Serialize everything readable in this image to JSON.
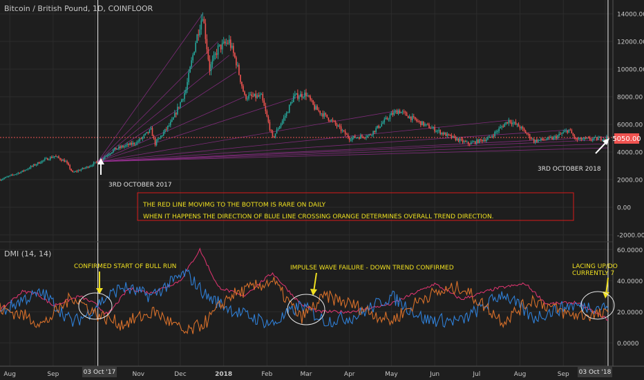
{
  "header": {
    "title": "Bitcoin / British Pound, 1D, COINFLOOR"
  },
  "indicator": {
    "title": "DMI (14, 14)"
  },
  "price_badge": {
    "value": "5050.00",
    "color": "#ef5350"
  },
  "time_badges": {
    "left": "03 Oct '17",
    "right": "03 Oct '18"
  },
  "annotations": {
    "left_date": "3RD OCTOBER 2017",
    "right_date": "3RD OCTOBER 2018",
    "box_line1": "THE RED LINE MOVIMG TO THE BOTTOM IS RARE ON DAILY",
    "box_line2": "WHEN IT HAPPENS THE DIRECTION OF BLUE LINE CROSSING ORANGE DETERMINES OVERALL TREND DIRECTION.",
    "bull": "CONFIRMED START OF BULL RUN",
    "impulse": "IMPULSE WAVE FAILURE - DOWN TREND CONFIRMED",
    "lacing1": "LACING UP/DO",
    "lacing2": "CURRENTLY 7"
  },
  "colors": {
    "background": "#1e1e1e",
    "grid": "#2c2c2c",
    "up": "#26a69a",
    "down": "#ef5350",
    "di_plus": "#2f7fd6",
    "di_minus": "#d8702a",
    "adx": "#d6336c",
    "fan": "#a0309a",
    "annotation_text": "#f0e020",
    "box_border": "#d81b1b"
  },
  "chart_data": [
    {
      "type": "candlestick",
      "title": "Bitcoin / British Pound, 1D, COINFLOOR",
      "ylim": [
        -2500,
        15000
      ],
      "yticks": [
        -2000,
        0,
        2000,
        4000,
        6000,
        8000,
        10000,
        12000,
        14000
      ],
      "ytick_labels": [
        "-2000.00",
        "0.00",
        "2000.00",
        "4000.00",
        "6000.00",
        "8000.00",
        "10000.00",
        "12000.00",
        "14000.00"
      ],
      "xtick_labels": [
        "Aug",
        "Sep",
        "Oct",
        "Nov",
        "Dec",
        "2018",
        "Feb",
        "Mar",
        "Apr",
        "May",
        "Jun",
        "Jul",
        "Aug",
        "Sep",
        "Oct"
      ],
      "close_path": [
        [
          "2017-07-25",
          2000
        ],
        [
          "2017-08-10",
          2600
        ],
        [
          "2017-08-25",
          3400
        ],
        [
          "2017-09-02",
          3700
        ],
        [
          "2017-09-10",
          3300
        ],
        [
          "2017-09-15",
          2500
        ],
        [
          "2017-09-25",
          2900
        ],
        [
          "2017-10-03",
          3300
        ],
        [
          "2017-10-15",
          4200
        ],
        [
          "2017-10-31",
          4700
        ],
        [
          "2017-11-10",
          5600
        ],
        [
          "2017-11-13",
          4600
        ],
        [
          "2017-11-25",
          6200
        ],
        [
          "2017-12-05",
          8500
        ],
        [
          "2017-12-12",
          12000
        ],
        [
          "2017-12-17",
          14000
        ],
        [
          "2017-12-22",
          10000
        ],
        [
          "2017-12-28",
          11500
        ],
        [
          "2018-01-05",
          12000
        ],
        [
          "2018-01-10",
          10500
        ],
        [
          "2018-01-16",
          8000
        ],
        [
          "2018-01-28",
          8000
        ],
        [
          "2018-02-05",
          5000
        ],
        [
          "2018-02-15",
          6800
        ],
        [
          "2018-02-20",
          8000
        ],
        [
          "2018-03-01",
          8200
        ],
        [
          "2018-03-07",
          7200
        ],
        [
          "2018-03-20",
          6200
        ],
        [
          "2018-04-01",
          5000
        ],
        [
          "2018-04-15",
          5200
        ],
        [
          "2018-05-01",
          6700
        ],
        [
          "2018-05-06",
          7000
        ],
        [
          "2018-05-20",
          6200
        ],
        [
          "2018-06-10",
          5200
        ],
        [
          "2018-06-25",
          4600
        ],
        [
          "2018-07-10",
          5000
        ],
        [
          "2018-07-24",
          6300
        ],
        [
          "2018-08-01",
          5800
        ],
        [
          "2018-08-11",
          4800
        ],
        [
          "2018-08-25",
          5000
        ],
        [
          "2018-09-05",
          5600
        ],
        [
          "2018-09-10",
          4900
        ],
        [
          "2018-09-25",
          4950
        ],
        [
          "2018-10-03",
          5050
        ]
      ],
      "last_price": 5050.0,
      "markers": [
        "2017-10-03",
        "2018-10-03"
      ]
    },
    {
      "type": "line",
      "title": "DMI (14, 14)",
      "ylim": [
        -15000,
        65000
      ],
      "yticks": [
        0,
        20000,
        40000,
        60000
      ],
      "ytick_labels": [
        "0.0000",
        "20.0000",
        "40.0000",
        "60.0000"
      ],
      "series": [
        {
          "key": "adx",
          "values": [
            [
              "2017-07-25",
              21000
            ],
            [
              "2017-08-10",
              33000
            ],
            [
              "2017-08-20",
              32000
            ],
            [
              "2017-09-01",
              24000
            ],
            [
              "2017-09-20",
              30000
            ],
            [
              "2017-10-01",
              25000
            ],
            [
              "2017-10-10",
              18000
            ],
            [
              "2017-10-25",
              35000
            ],
            [
              "2017-11-10",
              32000
            ],
            [
              "2017-12-01",
              40000
            ],
            [
              "2017-12-15",
              60000
            ],
            [
              "2017-12-28",
              36000
            ],
            [
              "2018-01-15",
              30000
            ],
            [
              "2018-02-05",
              45000
            ],
            [
              "2018-02-25",
              25000
            ],
            [
              "2018-03-10",
              20000
            ],
            [
              "2018-04-01",
              20000
            ],
            [
              "2018-05-01",
              25000
            ],
            [
              "2018-06-01",
              38000
            ],
            [
              "2018-06-20",
              28000
            ],
            [
              "2018-07-15",
              35000
            ],
            [
              "2018-08-05",
              38000
            ],
            [
              "2018-08-20",
              25000
            ],
            [
              "2018-09-10",
              26000
            ],
            [
              "2018-10-03",
              15000
            ]
          ]
        },
        {
          "key": "di_plus",
          "values": [
            [
              "2017-07-25",
              19000
            ],
            [
              "2017-08-10",
              28000
            ],
            [
              "2017-08-25",
              32000
            ],
            [
              "2017-09-05",
              22000
            ],
            [
              "2017-09-15",
              13000
            ],
            [
              "2017-09-25",
              18000
            ],
            [
              "2017-10-03",
              25000
            ],
            [
              "2017-10-20",
              36000
            ],
            [
              "2017-11-10",
              30000
            ],
            [
              "2017-12-05",
              45000
            ],
            [
              "2017-12-20",
              30000
            ],
            [
              "2018-01-10",
              20000
            ],
            [
              "2018-02-05",
              12000
            ],
            [
              "2018-02-25",
              24000
            ],
            [
              "2018-03-15",
              14000
            ],
            [
              "2018-04-05",
              17000
            ],
            [
              "2018-05-01",
              30000
            ],
            [
              "2018-05-25",
              15000
            ],
            [
              "2018-06-20",
              14000
            ],
            [
              "2018-07-20",
              32000
            ],
            [
              "2018-08-10",
              16000
            ],
            [
              "2018-09-05",
              24000
            ],
            [
              "2018-10-03",
              23000
            ]
          ]
        },
        {
          "key": "di_minus",
          "values": [
            [
              "2017-07-25",
              22000
            ],
            [
              "2017-08-10",
              18000
            ],
            [
              "2017-08-25",
              12000
            ],
            [
              "2017-09-15",
              30000
            ],
            [
              "2017-10-03",
              18000
            ],
            [
              "2017-10-20",
              12000
            ],
            [
              "2017-11-13",
              20000
            ],
            [
              "2017-12-05",
              6000
            ],
            [
              "2017-12-20",
              14000
            ],
            [
              "2018-01-05",
              30000
            ],
            [
              "2018-02-05",
              40000
            ],
            [
              "2018-02-25",
              16000
            ],
            [
              "2018-03-15",
              30000
            ],
            [
              "2018-04-05",
              24000
            ],
            [
              "2018-05-01",
              14000
            ],
            [
              "2018-05-25",
              30000
            ],
            [
              "2018-06-20",
              36000
            ],
            [
              "2018-07-20",
              14000
            ],
            [
              "2018-08-10",
              28000
            ],
            [
              "2018-09-05",
              18000
            ],
            [
              "2018-10-03",
              18000
            ]
          ]
        }
      ],
      "markers": [
        "2017-10-03",
        "2018-10-03"
      ]
    }
  ]
}
